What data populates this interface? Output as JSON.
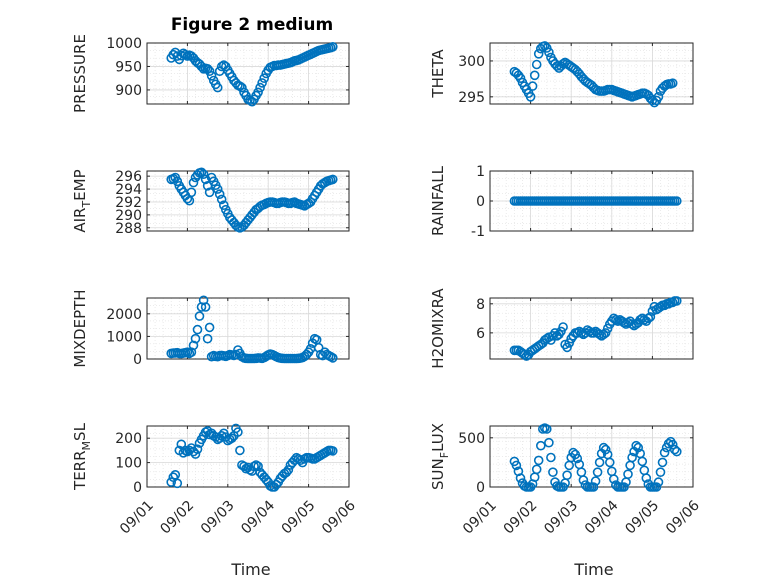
{
  "figure": {
    "title": "Figure 2 medium",
    "x_label": "Time",
    "x_tick_labels": [
      "09/01",
      "09/02",
      "09/03",
      "09/04",
      "09/05",
      "09/06"
    ]
  },
  "colors": {
    "marker": "#0072BD",
    "grid": "#d9d9d9",
    "axis": "#262626"
  },
  "chart_data": [
    {
      "type": "scatter",
      "name_key": "PRESSURE",
      "ylabel": "PRESSURE",
      "xlim": [
        0,
        5
      ],
      "ylim": [
        870,
        1000
      ],
      "yticks": [
        900,
        950,
        1000
      ],
      "ytick_labels": [
        "900",
        "950",
        "1000"
      ],
      "x": [
        0.6,
        0.65,
        0.7,
        0.75,
        0.8,
        0.85,
        0.9,
        0.95,
        1.0,
        1.05,
        1.1,
        1.15,
        1.2,
        1.25,
        1.3,
        1.35,
        1.4,
        1.45,
        1.5,
        1.55,
        1.6,
        1.65,
        1.7,
        1.75,
        1.8,
        1.85,
        1.9,
        1.95,
        2.0,
        2.05,
        2.1,
        2.15,
        2.2,
        2.25,
        2.3,
        2.35,
        2.4,
        2.45,
        2.5,
        2.55,
        2.6,
        2.65,
        2.7,
        2.75,
        2.8,
        2.85,
        2.9,
        2.95,
        3.0,
        3.05,
        3.1,
        3.15,
        3.2,
        3.25,
        3.3,
        3.35,
        3.4,
        3.45,
        3.5,
        3.55,
        3.6,
        3.65,
        3.7,
        3.75,
        3.8,
        3.85,
        3.9,
        3.95,
        4.0,
        4.05,
        4.1,
        4.15,
        4.2,
        4.25,
        4.3,
        4.35,
        4.4,
        4.45,
        4.5,
        4.55,
        4.6
      ],
      "y": [
        968,
        975,
        980,
        972,
        965,
        973,
        978,
        975,
        972,
        974,
        972,
        968,
        962,
        958,
        955,
        950,
        945,
        946,
        945,
        940,
        930,
        920,
        912,
        905,
        940,
        950,
        953,
        950,
        942,
        935,
        928,
        920,
        915,
        910,
        908,
        905,
        895,
        888,
        880,
        878,
        875,
        880,
        888,
        895,
        905,
        915,
        925,
        935,
        942,
        948,
        950,
        952,
        952,
        953,
        953,
        954,
        955,
        956,
        957,
        958,
        960,
        962,
        963,
        964,
        966,
        968,
        970,
        972,
        974,
        976,
        978,
        980,
        982,
        984,
        985,
        986,
        987,
        988,
        989,
        990,
        992
      ]
    },
    {
      "type": "scatter",
      "name_key": "THETA",
      "ylabel": "THETA",
      "xlim": [
        0,
        5
      ],
      "ylim": [
        294,
        302.5
      ],
      "yticks": [
        295,
        300
      ],
      "ytick_labels": [
        "295",
        "300"
      ],
      "x": [
        0.6,
        0.65,
        0.7,
        0.75,
        0.8,
        0.85,
        0.9,
        0.95,
        1.0,
        1.05,
        1.1,
        1.15,
        1.2,
        1.25,
        1.3,
        1.35,
        1.4,
        1.45,
        1.5,
        1.55,
        1.6,
        1.65,
        1.7,
        1.75,
        1.8,
        1.85,
        1.9,
        1.95,
        2.0,
        2.05,
        2.1,
        2.15,
        2.2,
        2.25,
        2.3,
        2.35,
        2.4,
        2.45,
        2.5,
        2.55,
        2.6,
        2.65,
        2.7,
        2.75,
        2.8,
        2.85,
        2.9,
        2.95,
        3.0,
        3.05,
        3.1,
        3.15,
        3.2,
        3.25,
        3.3,
        3.35,
        3.4,
        3.45,
        3.5,
        3.55,
        3.6,
        3.65,
        3.7,
        3.75,
        3.8,
        3.85,
        3.9,
        3.95,
        4.0,
        4.05,
        4.1,
        4.15,
        4.2,
        4.25,
        4.3,
        4.35,
        4.4,
        4.45,
        4.5
      ],
      "y": [
        298.5,
        298.3,
        298.0,
        297.6,
        297.0,
        296.5,
        296.0,
        295.5,
        295.0,
        296.5,
        298.0,
        299.5,
        301.0,
        301.7,
        302.0,
        302.1,
        301.8,
        301.2,
        300.5,
        300.0,
        299.6,
        299.3,
        299.0,
        299.3,
        299.6,
        299.8,
        299.6,
        299.4,
        299.2,
        299.0,
        298.8,
        298.5,
        298.2,
        297.8,
        297.5,
        297.2,
        297.0,
        296.8,
        296.6,
        296.3,
        296.0,
        295.9,
        295.8,
        295.8,
        295.8,
        295.9,
        296.0,
        296.0,
        296.0,
        295.9,
        295.8,
        295.7,
        295.6,
        295.5,
        295.4,
        295.3,
        295.2,
        295.1,
        295.0,
        295.1,
        295.2,
        295.3,
        295.4,
        295.5,
        295.5,
        295.4,
        295.2,
        294.8,
        294.5,
        294.2,
        294.5,
        295.0,
        295.8,
        296.2,
        296.5,
        296.7,
        296.8,
        296.8,
        296.9
      ]
    },
    {
      "type": "scatter",
      "name_key": "AIR_TEMP",
      "ylabel": "AIR",
      "ylabel_sub": "T",
      "ylabel_rest": "EMP",
      "xlim": [
        0,
        5
      ],
      "ylim": [
        287.5,
        296.8
      ],
      "yticks": [
        288,
        290,
        292,
        294,
        296
      ],
      "ytick_labels": [
        "288",
        "290",
        "292",
        "294",
        "296"
      ],
      "x": [
        0.6,
        0.65,
        0.7,
        0.75,
        0.8,
        0.85,
        0.9,
        0.95,
        1.0,
        1.05,
        1.1,
        1.15,
        1.2,
        1.25,
        1.3,
        1.35,
        1.4,
        1.45,
        1.5,
        1.55,
        1.6,
        1.65,
        1.7,
        1.75,
        1.8,
        1.85,
        1.9,
        1.95,
        2.0,
        2.05,
        2.1,
        2.15,
        2.2,
        2.25,
        2.3,
        2.35,
        2.4,
        2.45,
        2.5,
        2.55,
        2.6,
        2.65,
        2.7,
        2.75,
        2.8,
        2.85,
        2.9,
        2.95,
        3.0,
        3.05,
        3.1,
        3.15,
        3.2,
        3.25,
        3.3,
        3.35,
        3.4,
        3.45,
        3.5,
        3.55,
        3.6,
        3.65,
        3.7,
        3.75,
        3.8,
        3.85,
        3.9,
        3.95,
        4.0,
        4.05,
        4.1,
        4.15,
        4.2,
        4.25,
        4.3,
        4.35,
        4.4,
        4.45,
        4.5,
        4.55,
        4.6
      ],
      "y": [
        295.5,
        295.6,
        295.8,
        295.2,
        294.5,
        294.0,
        293.5,
        293.0,
        292.5,
        292.2,
        293.5,
        295.0,
        295.8,
        296.2,
        296.5,
        296.6,
        296.3,
        295.5,
        294.5,
        293.5,
        295.8,
        295.2,
        294.6,
        294.0,
        293.2,
        292.4,
        291.5,
        290.8,
        290.2,
        289.6,
        289.2,
        288.8,
        288.4,
        288.1,
        288.0,
        288.1,
        288.4,
        288.8,
        289.2,
        289.6,
        290.0,
        290.4,
        290.8,
        291.0,
        291.3,
        291.5,
        291.6,
        291.8,
        291.9,
        292.0,
        292.0,
        291.9,
        291.8,
        291.8,
        291.9,
        292.0,
        292.0,
        291.9,
        291.8,
        291.8,
        291.9,
        292.0,
        291.8,
        291.7,
        291.6,
        291.5,
        291.4,
        291.6,
        291.8,
        292.0,
        292.5,
        293.0,
        293.5,
        294.0,
        294.5,
        294.8,
        295.0,
        295.2,
        295.3,
        295.4,
        295.5
      ]
    },
    {
      "type": "scatter",
      "name_key": "RAINFALL",
      "ylabel": "RAINFALL",
      "xlim": [
        0,
        5
      ],
      "ylim": [
        -1,
        1
      ],
      "yticks": [
        -1,
        0,
        1
      ],
      "ytick_labels": [
        "-1",
        "0",
        "1"
      ],
      "x_range": [
        0.6,
        4.6
      ],
      "x_count": 81,
      "constant_value": 0
    },
    {
      "type": "scatter",
      "name_key": "MIXDEPTH",
      "ylabel": "MIXDEPTH",
      "xlim": [
        0,
        5
      ],
      "ylim": [
        0,
        2700
      ],
      "yticks": [
        0,
        1000,
        2000
      ],
      "ytick_labels": [
        "0",
        "1000",
        "2000"
      ],
      "x": [
        0.6,
        0.65,
        0.7,
        0.75,
        0.8,
        0.85,
        0.9,
        0.95,
        1.0,
        1.05,
        1.1,
        1.15,
        1.2,
        1.25,
        1.3,
        1.35,
        1.4,
        1.45,
        1.5,
        1.55,
        1.6,
        1.65,
        1.7,
        1.75,
        1.8,
        1.85,
        1.9,
        1.95,
        2.0,
        2.05,
        2.1,
        2.15,
        2.2,
        2.25,
        2.3,
        2.35,
        2.4,
        2.45,
        2.5,
        2.55,
        2.6,
        2.65,
        2.7,
        2.75,
        2.8,
        2.85,
        2.9,
        2.95,
        3.0,
        3.05,
        3.1,
        3.15,
        3.2,
        3.25,
        3.3,
        3.35,
        3.4,
        3.45,
        3.5,
        3.55,
        3.6,
        3.65,
        3.7,
        3.75,
        3.8,
        3.85,
        3.9,
        3.95,
        4.0,
        4.05,
        4.1,
        4.15,
        4.2,
        4.25,
        4.3,
        4.35,
        4.4,
        4.45,
        4.5,
        4.55,
        4.6
      ],
      "y": [
        250,
        260,
        270,
        280,
        250,
        240,
        260,
        280,
        300,
        250,
        300,
        600,
        900,
        1300,
        1900,
        2300,
        2600,
        2300,
        900,
        1400,
        100,
        150,
        120,
        100,
        150,
        160,
        140,
        120,
        150,
        200,
        180,
        160,
        200,
        400,
        250,
        100,
        50,
        30,
        20,
        20,
        20,
        20,
        30,
        50,
        40,
        30,
        60,
        120,
        180,
        220,
        200,
        150,
        100,
        60,
        40,
        30,
        20,
        20,
        20,
        20,
        20,
        20,
        20,
        30,
        40,
        60,
        120,
        200,
        300,
        450,
        700,
        900,
        850,
        500,
        200,
        150,
        300,
        200,
        150,
        100,
        50
      ]
    },
    {
      "type": "scatter",
      "name_key": "H2OMIXRA",
      "ylabel": "H2OMIXRA",
      "xlim": [
        0,
        5
      ],
      "ylim": [
        4.2,
        8.4
      ],
      "yticks": [
        6,
        8
      ],
      "ytick_labels": [
        "6",
        "8"
      ],
      "x": [
        0.6,
        0.65,
        0.7,
        0.75,
        0.8,
        0.85,
        0.9,
        0.95,
        1.0,
        1.05,
        1.1,
        1.15,
        1.2,
        1.25,
        1.3,
        1.35,
        1.4,
        1.45,
        1.5,
        1.55,
        1.6,
        1.65,
        1.7,
        1.75,
        1.8,
        1.85,
        1.9,
        1.95,
        2.0,
        2.05,
        2.1,
        2.15,
        2.2,
        2.25,
        2.3,
        2.35,
        2.4,
        2.45,
        2.5,
        2.55,
        2.6,
        2.65,
        2.7,
        2.75,
        2.8,
        2.85,
        2.9,
        2.95,
        3.0,
        3.05,
        3.1,
        3.15,
        3.2,
        3.25,
        3.3,
        3.35,
        3.4,
        3.45,
        3.5,
        3.55,
        3.6,
        3.65,
        3.7,
        3.75,
        3.8,
        3.85,
        3.9,
        3.95,
        4.0,
        4.05,
        4.1,
        4.15,
        4.2,
        4.25,
        4.3,
        4.35,
        4.4,
        4.45,
        4.5,
        4.55,
        4.6
      ],
      "y": [
        4.8,
        4.8,
        4.8,
        4.7,
        4.6,
        4.5,
        4.4,
        4.5,
        4.7,
        4.8,
        4.9,
        5.0,
        5.1,
        5.2,
        5.3,
        5.5,
        5.6,
        5.7,
        5.5,
        5.8,
        6.0,
        5.8,
        5.9,
        6.1,
        6.4,
        5.2,
        5.0,
        5.3,
        5.6,
        5.8,
        6.0,
        6.0,
        6.1,
        6.0,
        5.9,
        6.0,
        6.2,
        6.1,
        6.0,
        6.0,
        6.1,
        6.0,
        5.9,
        5.8,
        5.9,
        6.0,
        6.3,
        6.6,
        6.8,
        7.0,
        6.9,
        6.8,
        6.9,
        6.8,
        6.7,
        6.6,
        6.7,
        6.8,
        6.6,
        6.5,
        6.6,
        6.7,
        6.9,
        7.0,
        6.9,
        6.8,
        7.0,
        7.1,
        7.5,
        7.8,
        7.6,
        7.7,
        7.8,
        7.9,
        7.9,
        8.0,
        8.0,
        8.1,
        8.1,
        8.2,
        8.2
      ]
    },
    {
      "type": "scatter",
      "name_key": "TERR_MSL",
      "ylabel": "TERR",
      "ylabel_sub": "M",
      "ylabel_rest": "SL",
      "xlim": [
        0,
        5
      ],
      "ylim": [
        0,
        250
      ],
      "yticks": [
        0,
        100,
        200
      ],
      "ytick_labels": [
        "0",
        "100",
        "200"
      ],
      "x": [
        0.6,
        0.65,
        0.7,
        0.75,
        0.8,
        0.85,
        0.9,
        0.95,
        1.0,
        1.05,
        1.1,
        1.15,
        1.2,
        1.25,
        1.3,
        1.35,
        1.4,
        1.45,
        1.5,
        1.55,
        1.6,
        1.65,
        1.7,
        1.75,
        1.8,
        1.85,
        1.9,
        1.95,
        2.0,
        2.05,
        2.1,
        2.15,
        2.2,
        2.25,
        2.3,
        2.35,
        2.4,
        2.45,
        2.5,
        2.55,
        2.6,
        2.65,
        2.7,
        2.75,
        2.8,
        2.85,
        2.9,
        2.95,
        3.0,
        3.05,
        3.1,
        3.15,
        3.2,
        3.25,
        3.3,
        3.35,
        3.4,
        3.45,
        3.5,
        3.55,
        3.6,
        3.65,
        3.7,
        3.75,
        3.8,
        3.85,
        3.9,
        3.95,
        4.0,
        4.05,
        4.1,
        4.15,
        4.2,
        4.25,
        4.3,
        4.35,
        4.4,
        4.45,
        4.5,
        4.55,
        4.6
      ],
      "y": [
        20,
        40,
        50,
        15,
        150,
        175,
        140,
        150,
        145,
        150,
        160,
        145,
        135,
        155,
        180,
        195,
        210,
        225,
        230,
        215,
        220,
        210,
        205,
        195,
        200,
        210,
        220,
        205,
        190,
        195,
        200,
        210,
        240,
        225,
        150,
        90,
        85,
        75,
        80,
        70,
        65,
        85,
        90,
        85,
        60,
        50,
        40,
        30,
        20,
        5,
        0,
        0,
        10,
        20,
        35,
        45,
        55,
        60,
        70,
        90,
        100,
        110,
        120,
        115,
        110,
        100,
        115,
        120,
        120,
        118,
        115,
        115,
        120,
        125,
        130,
        135,
        140,
        145,
        150,
        150,
        148
      ]
    },
    {
      "type": "scatter",
      "name_key": "SUN_FLUX",
      "ylabel": "SUN",
      "ylabel_sub": "F",
      "ylabel_rest": "LUX",
      "xlim": [
        0,
        5
      ],
      "ylim": [
        0,
        620
      ],
      "yticks": [
        0,
        500
      ],
      "ytick_labels": [
        "0",
        "500"
      ],
      "x": [
        0.6,
        0.65,
        0.7,
        0.75,
        0.8,
        0.85,
        0.9,
        0.95,
        1.0,
        1.05,
        1.1,
        1.15,
        1.2,
        1.25,
        1.3,
        1.35,
        1.4,
        1.45,
        1.5,
        1.55,
        1.6,
        1.65,
        1.7,
        1.75,
        1.8,
        1.85,
        1.9,
        1.95,
        2.0,
        2.05,
        2.1,
        2.15,
        2.2,
        2.25,
        2.3,
        2.35,
        2.4,
        2.45,
        2.5,
        2.55,
        2.6,
        2.65,
        2.7,
        2.75,
        2.8,
        2.85,
        2.9,
        2.95,
        3.0,
        3.05,
        3.1,
        3.15,
        3.2,
        3.25,
        3.3,
        3.35,
        3.4,
        3.45,
        3.5,
        3.55,
        3.6,
        3.65,
        3.7,
        3.75,
        3.8,
        3.85,
        3.9,
        3.95,
        4.0,
        4.05,
        4.1,
        4.15,
        4.2,
        4.25,
        4.3,
        4.35,
        4.4,
        4.45,
        4.5,
        4.55,
        4.6
      ],
      "y": [
        260,
        220,
        160,
        90,
        40,
        10,
        0,
        0,
        0,
        30,
        100,
        180,
        270,
        420,
        590,
        600,
        590,
        450,
        300,
        150,
        50,
        10,
        0,
        0,
        0,
        40,
        120,
        220,
        300,
        350,
        330,
        290,
        230,
        150,
        70,
        20,
        0,
        0,
        0,
        0,
        60,
        150,
        250,
        340,
        400,
        380,
        330,
        250,
        160,
        80,
        20,
        0,
        0,
        0,
        0,
        50,
        130,
        220,
        300,
        360,
        420,
        400,
        340,
        260,
        170,
        90,
        30,
        0,
        0,
        0,
        0,
        50,
        150,
        250,
        350,
        400,
        440,
        460,
        430,
        380,
        360
      ]
    }
  ]
}
